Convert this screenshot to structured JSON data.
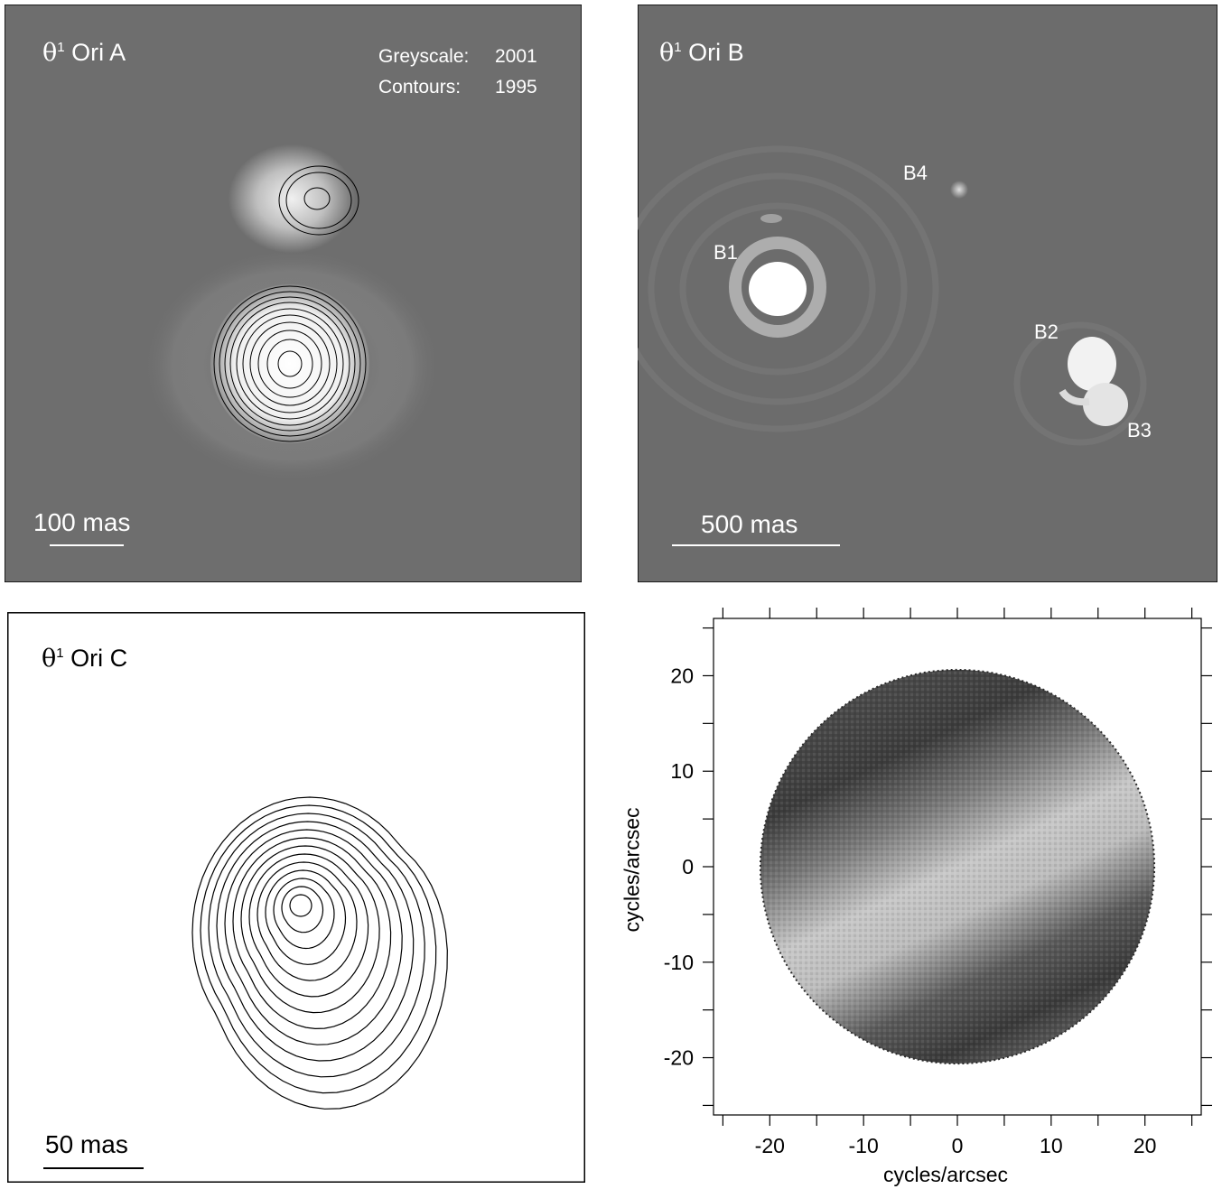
{
  "panel_a": {
    "title_symbol": "θ",
    "title_sup": "1",
    "title_text": " Ori A",
    "greyscale_label": "Greyscale:",
    "greyscale_year": "2001",
    "contours_label": "Contours:",
    "contours_year": "1995",
    "scale_label": "100 mas"
  },
  "panel_b": {
    "title_symbol": "θ",
    "title_sup": "1",
    "title_text": " Ori B",
    "components": [
      "B1",
      "B2",
      "B3",
      "B4"
    ],
    "scale_label": "500 mas"
  },
  "panel_c": {
    "title_symbol": "θ",
    "title_sup": "1",
    "title_text": " Ori C",
    "scale_label": "50 mas"
  },
  "chart_data": {
    "type": "heatmap",
    "xlabel": "cycles/arcsec",
    "ylabel": "cycles/arcsec",
    "xlim": [
      -26,
      26
    ],
    "ylim": [
      -26,
      26
    ],
    "xticks": [
      "-20",
      "-10",
      "0",
      "10",
      "20"
    ],
    "yticks": [
      "20",
      "10",
      "0",
      "-10",
      "-20"
    ],
    "aperture_radius": 21,
    "description_values": "greyscale Fourier amplitude within circular aperture, fringe bands oriented at ~25 deg"
  }
}
